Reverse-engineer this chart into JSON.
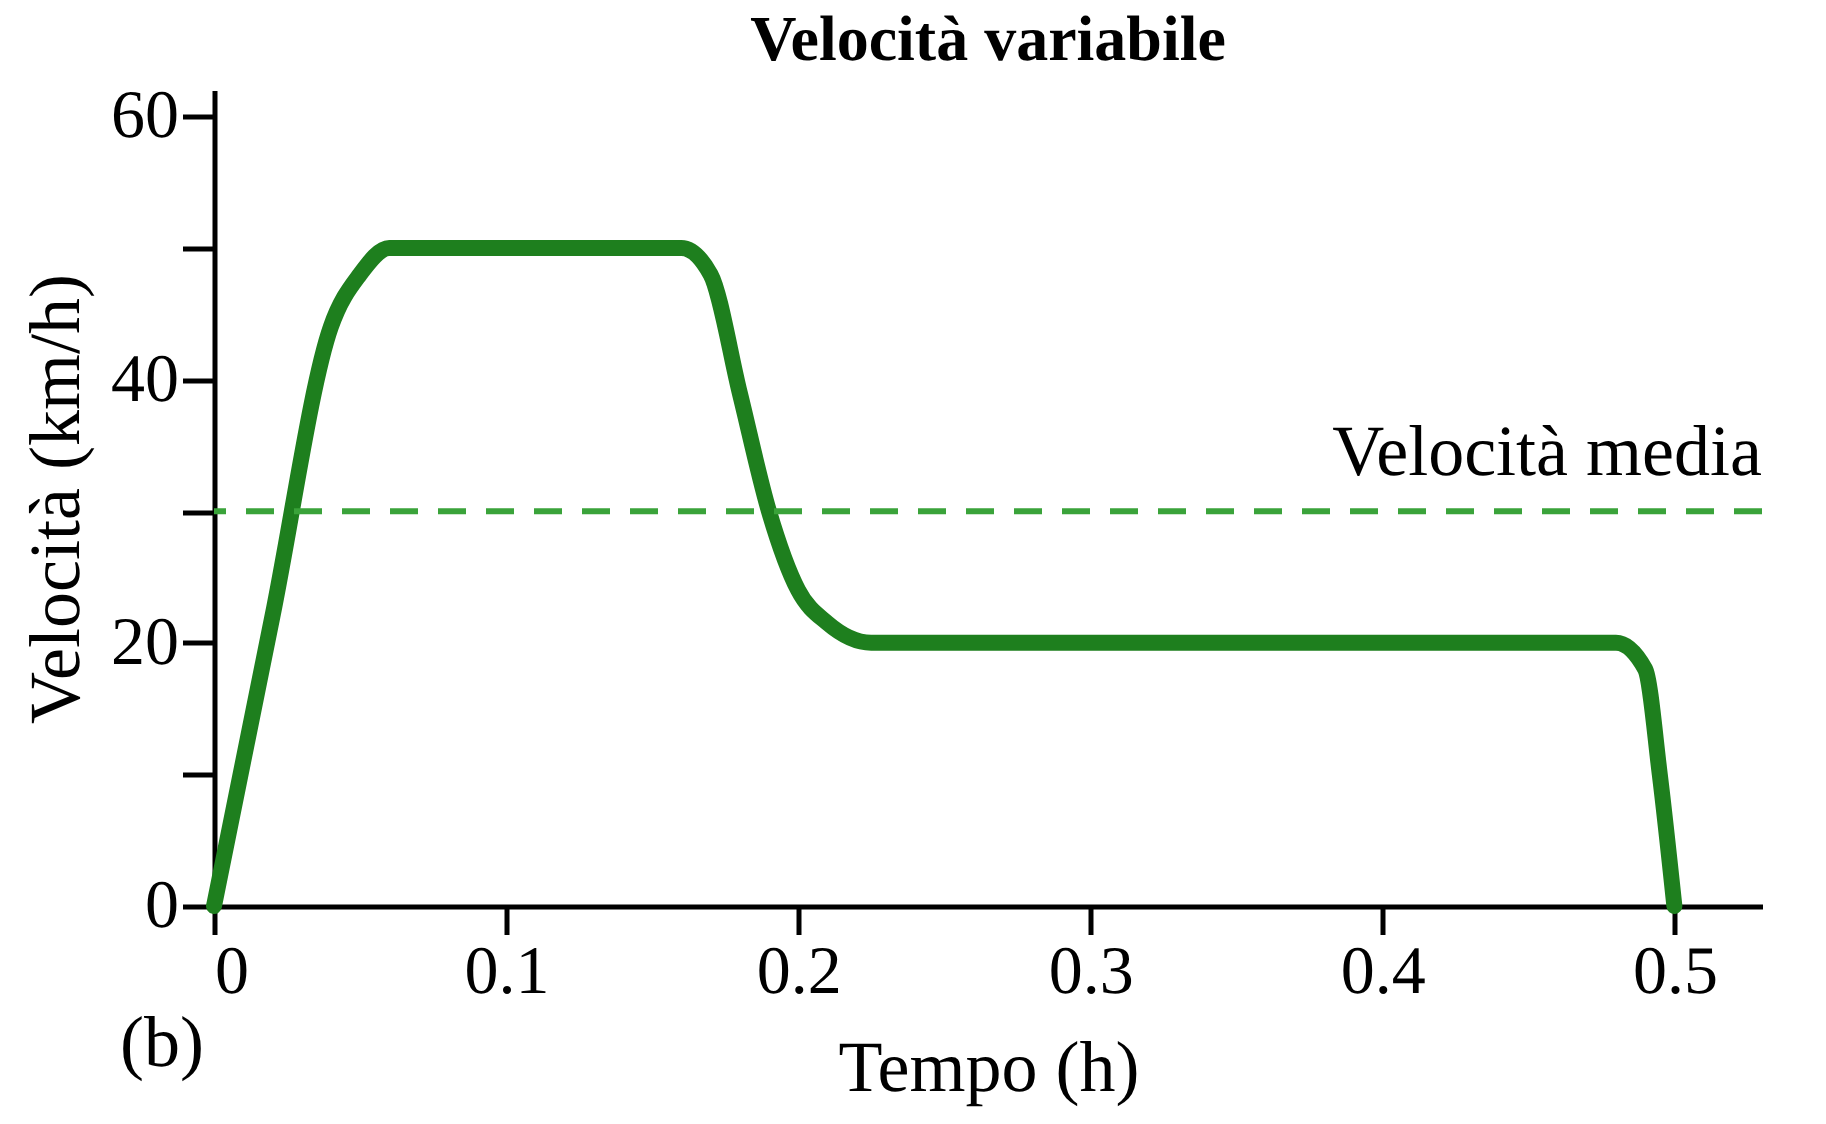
{
  "chart_data": {
    "type": "line",
    "title": "Velocità variabile",
    "xlabel": "Tempo (h)",
    "ylabel": "Velocità (km/h)",
    "x": [
      0,
      0.02,
      0.04,
      0.05,
      0.06,
      0.16,
      0.17,
      0.18,
      0.19,
      0.2,
      0.21,
      0.225,
      0.48,
      0.49,
      0.495,
      0.5
    ],
    "series": [
      {
        "color": "#1e7f1e",
        "values": [
          0,
          22,
          44,
          48,
          50,
          50,
          48,
          39,
          30,
          24,
          21.5,
          20,
          20,
          18,
          10,
          0
        ]
      }
    ],
    "xlim": [
      0,
      0.53
    ],
    "ylim": [
      0,
      62
    ],
    "xticks": [
      0,
      0.1,
      0.2,
      0.3,
      0.4,
      0.5
    ],
    "yticks": [
      0,
      {
        "value": 10,
        "label": null
      },
      20,
      {
        "value": 30,
        "label": null
      },
      40,
      {
        "value": 50,
        "label": null
      },
      60
    ],
    "line_style": "solid",
    "ref_lines": [
      {
        "axis": "y",
        "value": 30,
        "label": "Velocità media",
        "color": "#3aa33a",
        "line_style": "dashed"
      }
    ],
    "annotations": [
      "(b)"
    ]
  }
}
